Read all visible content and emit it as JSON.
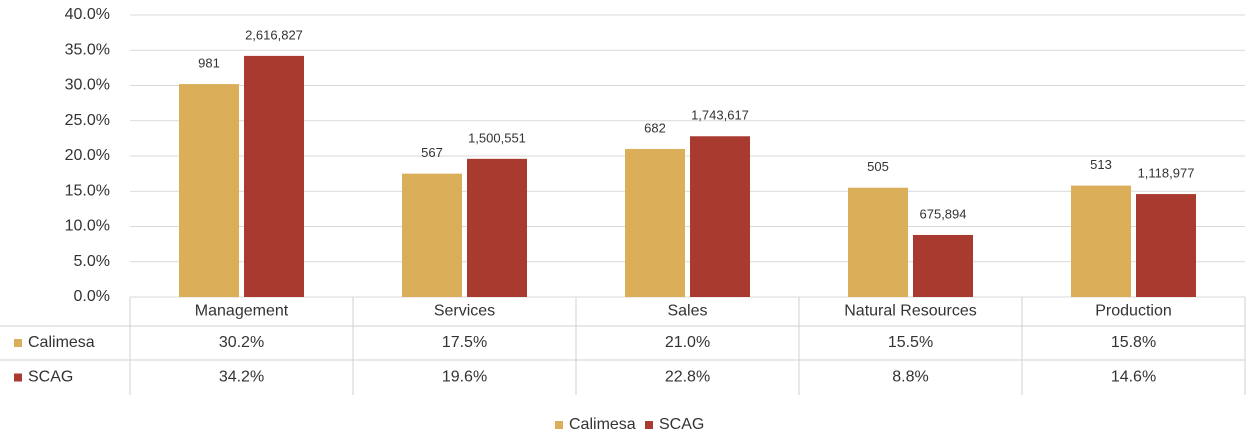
{
  "chart_data": {
    "type": "bar",
    "categories": [
      "Management",
      "Services",
      "Sales",
      "Natural Resources",
      "Production"
    ],
    "series": [
      {
        "name": "Calimesa",
        "color": "#dbae5a",
        "values": [
          30.2,
          17.5,
          21.0,
          15.5,
          15.8
        ],
        "value_labels": [
          "30.2%",
          "17.5%",
          "21.0%",
          "15.5%",
          "15.8%"
        ],
        "data_labels": [
          "981",
          "567",
          "682",
          "505",
          "513"
        ]
      },
      {
        "name": "SCAG",
        "color": "#a93a30",
        "values": [
          34.2,
          19.6,
          22.8,
          8.8,
          14.6
        ],
        "value_labels": [
          "34.2%",
          "19.6%",
          "22.8%",
          "8.8%",
          "14.6%"
        ],
        "data_labels": [
          "2,616,827",
          "1,500,551",
          "1,743,617",
          "675,894",
          "1,118,977"
        ]
      }
    ],
    "ylim": [
      0,
      40
    ],
    "yticks": [
      {
        "value": 0,
        "label": "0.0%"
      },
      {
        "value": 5,
        "label": "5.0%"
      },
      {
        "value": 10,
        "label": "10.0%"
      },
      {
        "value": 15,
        "label": "15.0%"
      },
      {
        "value": 20,
        "label": "20.0%"
      },
      {
        "value": 25,
        "label": "25.0%"
      },
      {
        "value": 30,
        "label": "30.0%"
      },
      {
        "value": 35,
        "label": "35.0%"
      },
      {
        "value": 40,
        "label": "40.0%"
      }
    ],
    "grid": true,
    "legend": "bottom",
    "data_table": true
  }
}
